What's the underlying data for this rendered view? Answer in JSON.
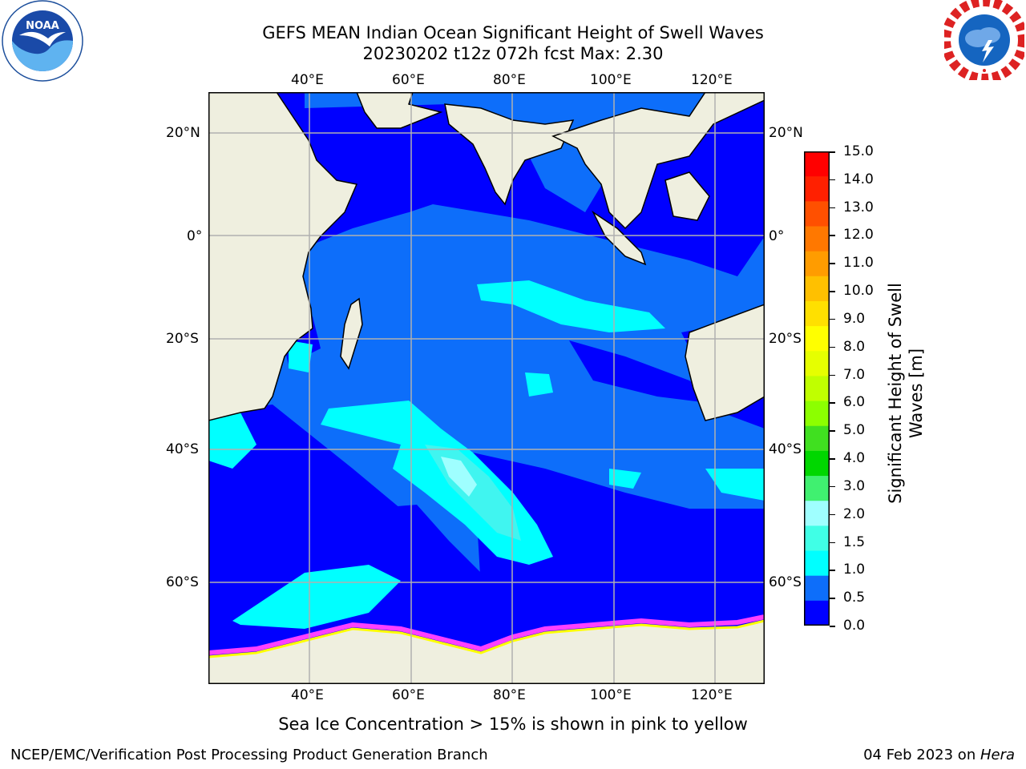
{
  "header": {
    "title_line1": "GEFS MEAN Indian Ocean Significant Height of Swell Waves",
    "title_line2": "20230202 t12z 072h fcst   Max: 2.30"
  },
  "logos": {
    "noaa": {
      "text": "NOAA",
      "ring_text": "NATIONAL OCEANIC AND ATMOSPHERIC ADMINISTRATION · U.S. DEPARTMENT OF COMMERCE"
    },
    "nws": {
      "ring_text": "NATIONAL WEATHER SERVICE"
    }
  },
  "map": {
    "lon_labels": [
      "40°E",
      "60°E",
      "80°E",
      "100°E",
      "120°E"
    ],
    "lat_labels_left": [
      "20°N",
      "0°",
      "20°S",
      "40°S",
      "60°S"
    ],
    "lat_labels_right": [
      "20°N",
      "0°",
      "20°S",
      "40°S",
      "60°S"
    ],
    "colors": {
      "ocean_0_05": "#0000ff",
      "ocean_05_1": "#0d6efa",
      "ocean_1_15": "#00ffff",
      "ocean_15_2": "#40f5f0",
      "ocean_2_3": "#9fffff",
      "land": "#efefdf",
      "grid": "#b0b0b0",
      "coast": "#000000",
      "sea_ice": "#ff40ff",
      "sea_ice_edge": "#ffff00"
    }
  },
  "colorbar": {
    "tick_labels": [
      "15.0",
      "14.0",
      "13.0",
      "12.0",
      "11.0",
      "10.0",
      "9.0",
      "8.0",
      "7.0",
      "6.0",
      "5.0",
      "4.0",
      "3.0",
      "2.0",
      "1.5",
      "1.0",
      "0.5",
      "0.0"
    ],
    "colors_top_to_bottom": [
      "#ff0000",
      "#ff2000",
      "#ff5000",
      "#ff7800",
      "#ff9c00",
      "#ffc000",
      "#ffe000",
      "#ffff00",
      "#e6ff00",
      "#c0ff00",
      "#8cff00",
      "#40e020",
      "#00d700",
      "#40f070",
      "#9fffff",
      "#40ffe6",
      "#00ffff",
      "#0d6efa",
      "#0000ff"
    ],
    "label": "Significant Height of Swell Waves [m]",
    "label_line1": "Significant Height of Swell",
    "label_line2": "Waves [m]"
  },
  "caption": "Sea Ice Concentration > 15% is shown in pink to yellow",
  "footer": {
    "left": "NCEP/EMC/Verification Post Processing Product Generation Branch",
    "right_date": "04 Feb 2023 on ",
    "right_host": "Hera"
  }
}
